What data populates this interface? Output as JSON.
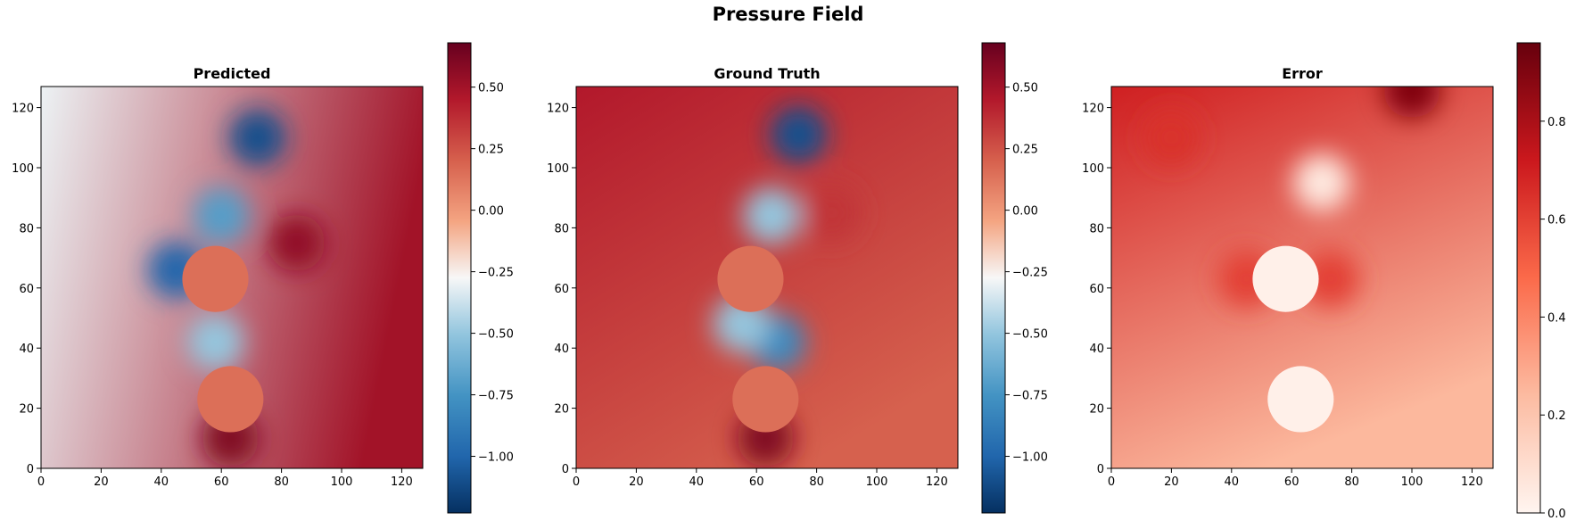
{
  "title": "Pressure Field",
  "chart_data": [
    {
      "type": "heatmap",
      "title": "Predicted",
      "xlim": [
        0,
        127
      ],
      "ylim": [
        0,
        127
      ],
      "xticks": [
        "0",
        "20",
        "40",
        "60",
        "80",
        "100",
        "120"
      ],
      "yticks": [
        "0",
        "20",
        "40",
        "60",
        "80",
        "100",
        "120"
      ],
      "colormap": "RdBu_r",
      "colorbar": {
        "range": [
          -1.23,
          0.68
        ],
        "ticks": [
          "0.50",
          "0.25",
          "0.00",
          "−0.25",
          "−0.50",
          "−0.75",
          "−1.00"
        ]
      },
      "obstacles": [
        {
          "cx": 58,
          "cy": 63,
          "r": 11
        },
        {
          "cx": 63,
          "cy": 23,
          "r": 11
        }
      ],
      "field_features": [
        {
          "x": 72,
          "y": 110,
          "value": -1.1
        },
        {
          "x": 60,
          "y": 84,
          "value": -0.7
        },
        {
          "x": 45,
          "y": 66,
          "value": -1.0
        },
        {
          "x": 58,
          "y": 42,
          "value": -0.5
        },
        {
          "x": 85,
          "y": 75,
          "value": 0.55
        },
        {
          "x": 63,
          "y": 10,
          "value": 0.6
        }
      ]
    },
    {
      "type": "heatmap",
      "title": "Ground Truth",
      "xlim": [
        0,
        127
      ],
      "ylim": [
        0,
        127
      ],
      "xticks": [
        "0",
        "20",
        "40",
        "60",
        "80",
        "100",
        "120"
      ],
      "yticks": [
        "0",
        "20",
        "40",
        "60",
        "80",
        "100",
        "120"
      ],
      "colormap": "RdBu_r",
      "colorbar": {
        "range": [
          -1.23,
          0.68
        ],
        "ticks": [
          "0.50",
          "0.25",
          "0.00",
          "−0.25",
          "−0.50",
          "−0.75",
          "−1.00"
        ]
      },
      "obstacles": [
        {
          "cx": 58,
          "cy": 63,
          "r": 11
        },
        {
          "cx": 63,
          "cy": 23,
          "r": 11
        }
      ],
      "field_features": [
        {
          "x": 74,
          "y": 111,
          "value": -1.1
        },
        {
          "x": 65,
          "y": 84,
          "value": -0.5
        },
        {
          "x": 67,
          "y": 42,
          "value": -0.8
        },
        {
          "x": 55,
          "y": 48,
          "value": -0.5
        },
        {
          "x": 85,
          "y": 85,
          "value": 0.35
        },
        {
          "x": 63,
          "y": 10,
          "value": 0.6
        }
      ]
    },
    {
      "type": "heatmap",
      "title": "Error",
      "xlim": [
        0,
        127
      ],
      "ylim": [
        0,
        127
      ],
      "xticks": [
        "0",
        "20",
        "40",
        "60",
        "80",
        "100",
        "120"
      ],
      "yticks": [
        "0",
        "20",
        "40",
        "60",
        "80",
        "100",
        "120"
      ],
      "colormap": "Reds",
      "colorbar": {
        "range": [
          0.0,
          0.96
        ],
        "ticks": [
          "0.8",
          "0.6",
          "0.4",
          "0.2",
          "0.0"
        ]
      },
      "obstacles": [
        {
          "cx": 58,
          "cy": 63,
          "r": 11
        },
        {
          "cx": 63,
          "cy": 23,
          "r": 11
        }
      ],
      "field_features": [
        {
          "x": 100,
          "y": 126,
          "value": 0.9
        },
        {
          "x": 70,
          "y": 95,
          "value": 0.05
        },
        {
          "x": 73,
          "y": 63,
          "value": 0.6
        },
        {
          "x": 45,
          "y": 63,
          "value": 0.6
        },
        {
          "x": 20,
          "y": 110,
          "value": 0.65
        }
      ]
    }
  ]
}
